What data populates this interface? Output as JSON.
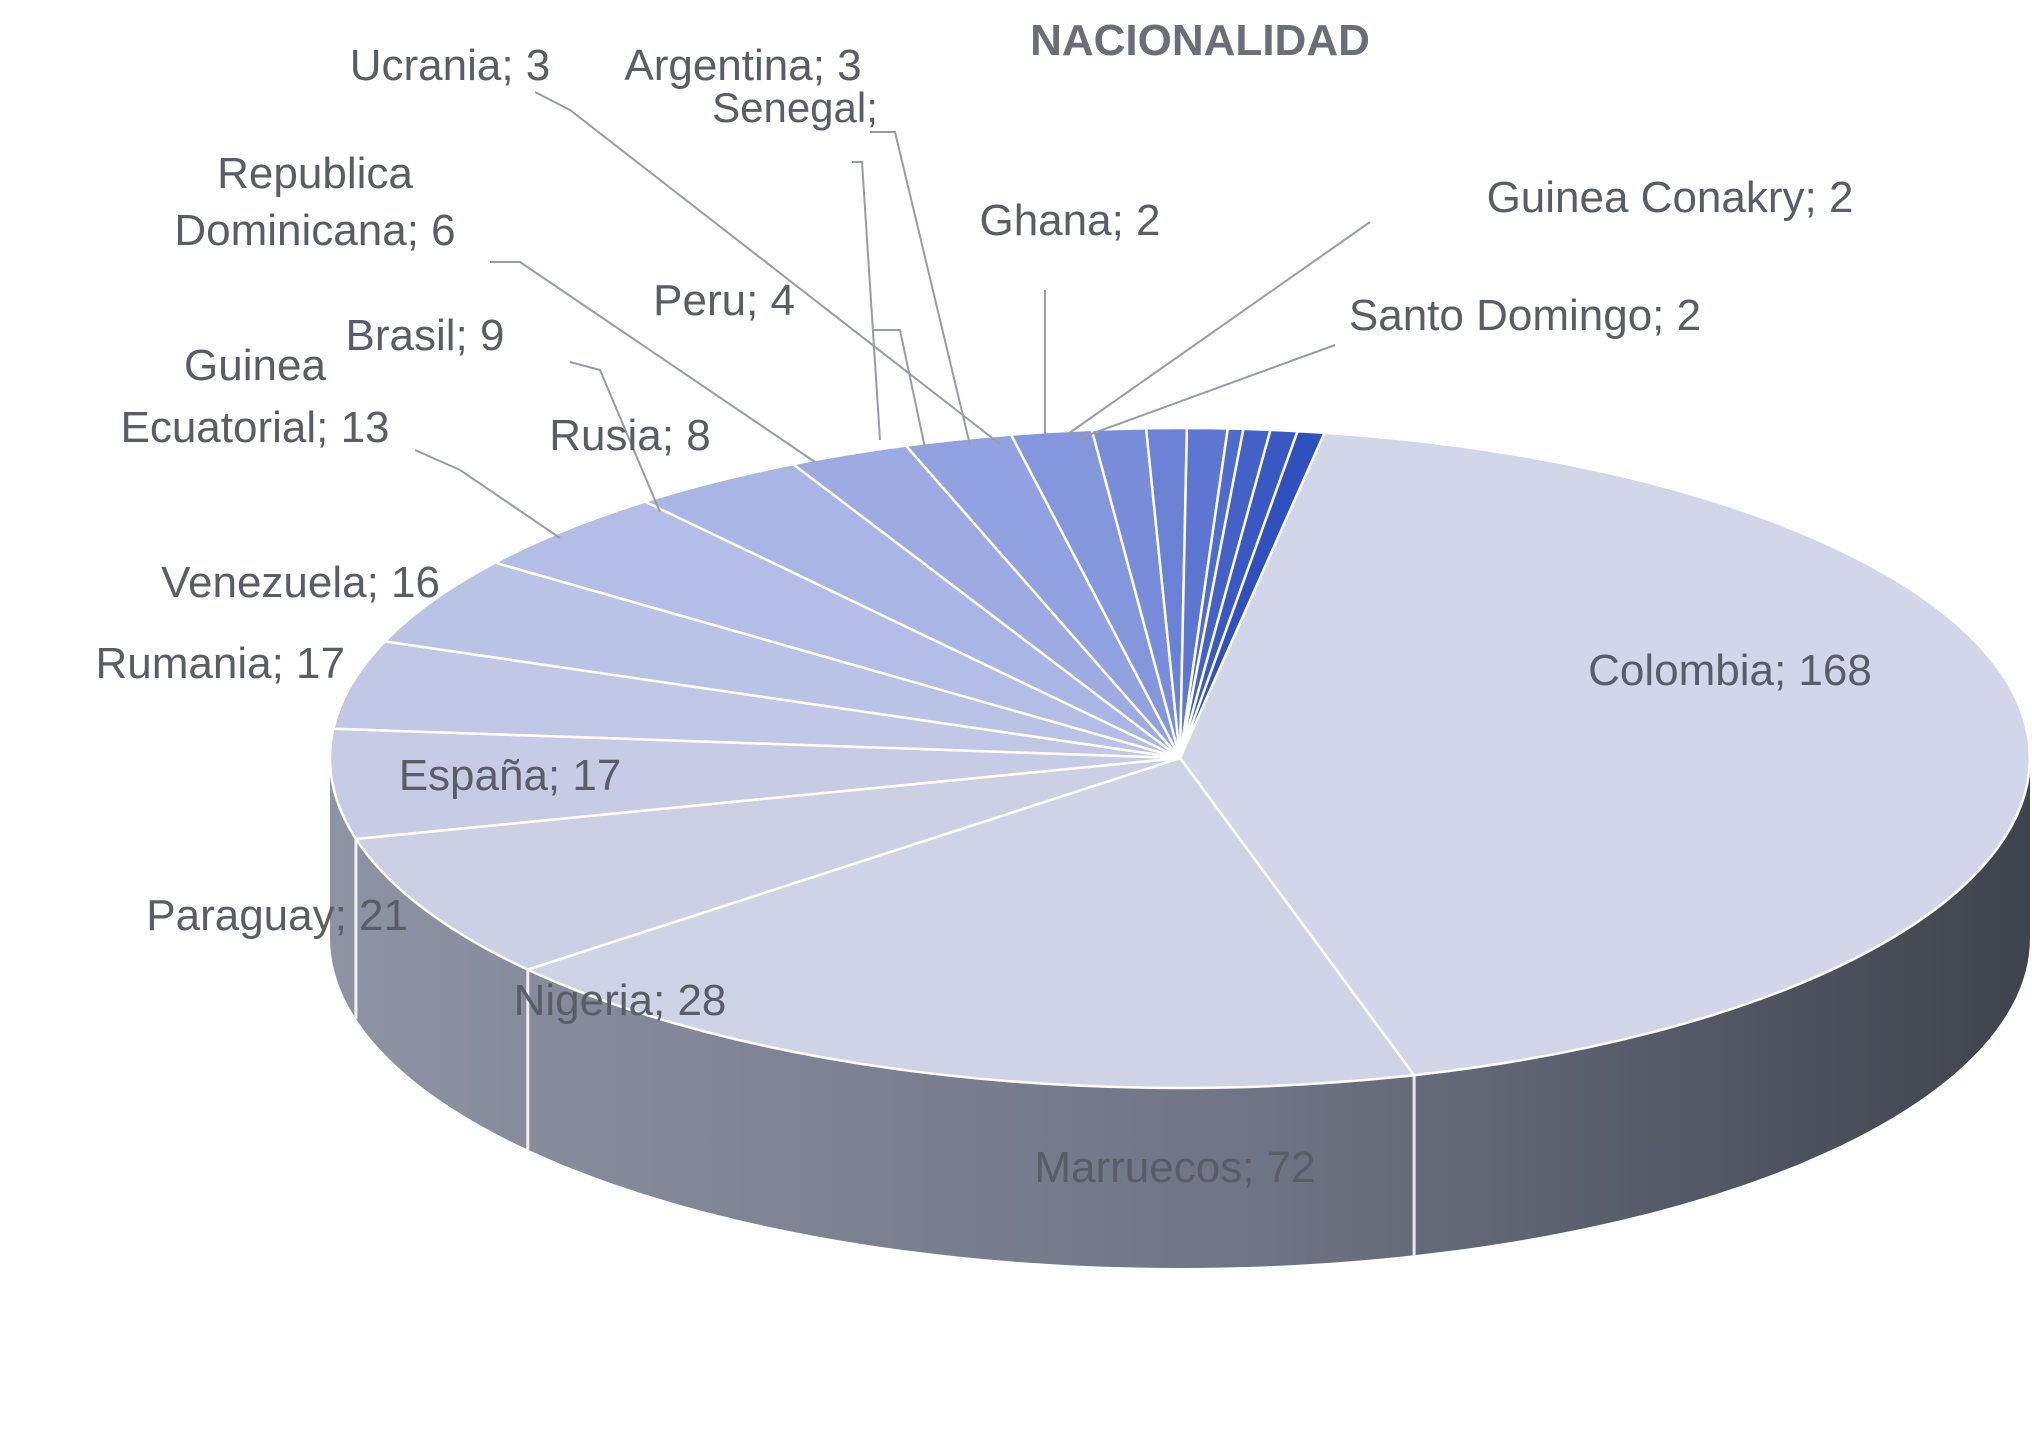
{
  "chart_data": {
    "type": "pie",
    "title": "NACIONALIDAD",
    "label_format": "name; value",
    "slices": [
      {
        "name": "Colombia",
        "value": 168
      },
      {
        "name": "Marruecos",
        "value": 72
      },
      {
        "name": "Nigeria",
        "value": 28
      },
      {
        "name": "Paraguay",
        "value": 21
      },
      {
        "name": "España",
        "value": 17
      },
      {
        "name": "Rumania",
        "value": 17
      },
      {
        "name": "Venezuela",
        "value": 16
      },
      {
        "name": "Guinea Ecuatorial",
        "value": 13
      },
      {
        "name": "Brasil",
        "value": 9
      },
      {
        "name": "Rusia",
        "value": 8
      },
      {
        "name": "Republica Dominicana",
        "value": 6
      },
      {
        "name": "Peru",
        "value": 4
      },
      {
        "name": "Ucrania",
        "value": 3
      },
      {
        "name": "Argentina",
        "value": 3
      },
      {
        "name": "Senegal",
        "value": null
      },
      {
        "name": "Ghana",
        "value": 2
      },
      {
        "name": "Guinea Conakry",
        "value": 2
      },
      {
        "name": "Santo Domingo",
        "value": 2
      }
    ],
    "legend": "none",
    "style": "3d"
  }
}
